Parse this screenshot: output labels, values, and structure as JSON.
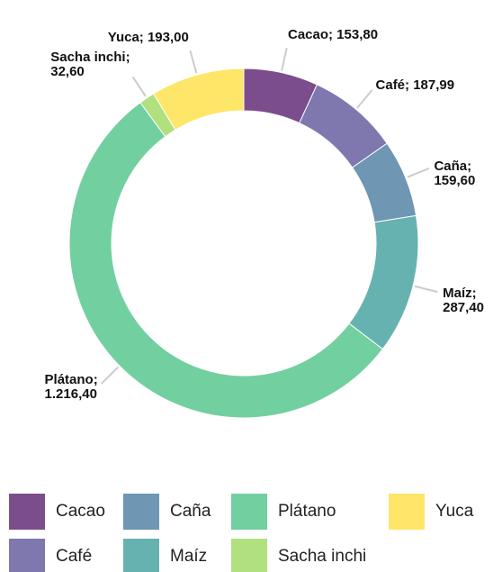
{
  "chart_data": {
    "type": "donut",
    "categories": [
      "Cacao",
      "Café",
      "Caña",
      "Maíz",
      "Plátano",
      "Sacha inchi",
      "Yuca"
    ],
    "values": [
      153.8,
      187.99,
      159.6,
      287.4,
      1216.4,
      32.6,
      193.0
    ],
    "value_labels": [
      "Cacao; 153,80",
      "Café; 187,99",
      "Caña; 159,60",
      "Maíz; 287,40",
      "Plátano;\n1.216,40",
      "Sacha inchi;\n32,60",
      "Yuca; 193,00"
    ],
    "colors": [
      "#7c4d8c",
      "#7f78ae",
      "#6f96b3",
      "#66b2b0",
      "#72cfa0",
      "#b1e07e",
      "#fde668"
    ],
    "legend": "bottom"
  }
}
